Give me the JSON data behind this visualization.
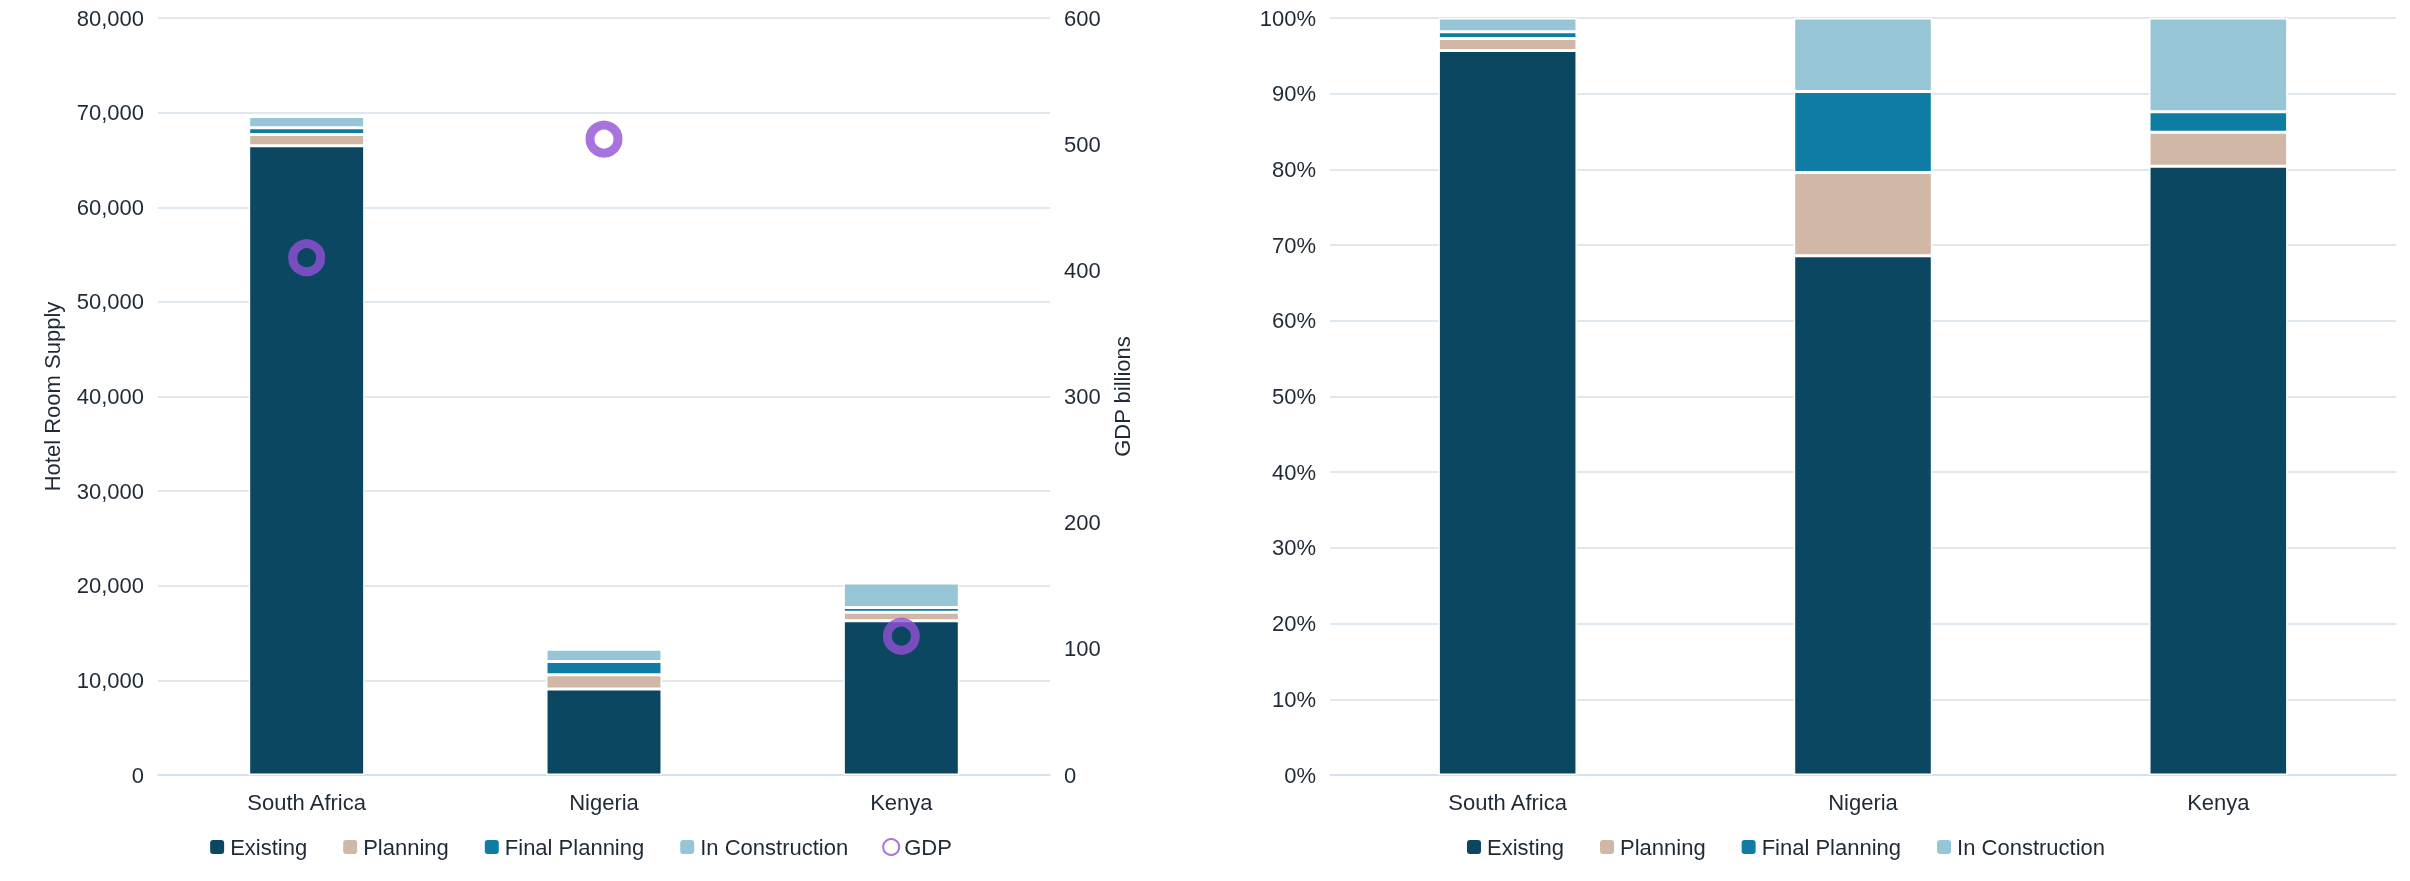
{
  "chart_data": [
    {
      "type": "bar",
      "stacked": true,
      "categories": [
        "South Africa",
        "Nigeria",
        "Kenya"
      ],
      "ylabel": "Hotel Room Supply",
      "y2label": "GDP billions",
      "series": [
        {
          "name": "Existing",
          "color": "#0b4760",
          "values": [
            66500,
            9100,
            16300
          ]
        },
        {
          "name": "Planning",
          "color": "#d1b7a5",
          "values": [
            1200,
            1500,
            900
          ]
        },
        {
          "name": "Final Planning",
          "color": "#0e7ca3",
          "values": [
            700,
            1400,
            500
          ]
        },
        {
          "name": "In Construction",
          "color": "#96c6d6",
          "values": [
            1200,
            1300,
            2600
          ]
        },
        {
          "name": "GDP",
          "type": "scatter",
          "axis": "y2",
          "marker": "circle",
          "color": "#9450d6",
          "values": [
            410,
            504,
            110
          ]
        }
      ],
      "ylim": [
        0,
        80000
      ],
      "yticks": [
        {
          "value": 0,
          "label": "0"
        },
        {
          "value": 10000,
          "label": "10,000"
        },
        {
          "value": 20000,
          "label": "20,000"
        },
        {
          "value": 30000,
          "label": "30,000"
        },
        {
          "value": 40000,
          "label": "40,000"
        },
        {
          "value": 50000,
          "label": "50,000"
        },
        {
          "value": 60000,
          "label": "60,000"
        },
        {
          "value": 70000,
          "label": "70,000"
        },
        {
          "value": 80000,
          "label": "80,000"
        }
      ],
      "y2lim": [
        0,
        600
      ],
      "y2ticks": [
        0,
        100,
        200,
        300,
        400,
        500,
        600
      ],
      "grid": "y",
      "legend": "bottom"
    },
    {
      "type": "bar",
      "stacked": true,
      "categories": [
        "South Africa",
        "Nigeria",
        "Kenya"
      ],
      "series": [
        {
          "name": "Existing",
          "color": "#0b4760",
          "values": [
            95.7,
            68.6,
            80.4
          ]
        },
        {
          "name": "Planning",
          "color": "#d1b7a5",
          "values": [
            1.6,
            11.0,
            4.5
          ]
        },
        {
          "name": "Final Planning",
          "color": "#0e7ca3",
          "values": [
            0.9,
            10.7,
            2.7
          ]
        },
        {
          "name": "In Construction",
          "color": "#96c6d6",
          "values": [
            1.8,
            9.7,
            12.4
          ]
        }
      ],
      "ylim": [
        0,
        100
      ],
      "yticks": [
        {
          "value": 0,
          "label": "0%"
        },
        {
          "value": 10,
          "label": "10%"
        },
        {
          "value": 20,
          "label": "20%"
        },
        {
          "value": 30,
          "label": "30%"
        },
        {
          "value": 40,
          "label": "40%"
        },
        {
          "value": 50,
          "label": "50%"
        },
        {
          "value": 60,
          "label": "60%"
        },
        {
          "value": 70,
          "label": "70%"
        },
        {
          "value": 80,
          "label": "80%"
        },
        {
          "value": 90,
          "label": "90%"
        },
        {
          "value": 100,
          "label": "100%"
        }
      ],
      "grid": "y",
      "legend": "bottom"
    }
  ]
}
